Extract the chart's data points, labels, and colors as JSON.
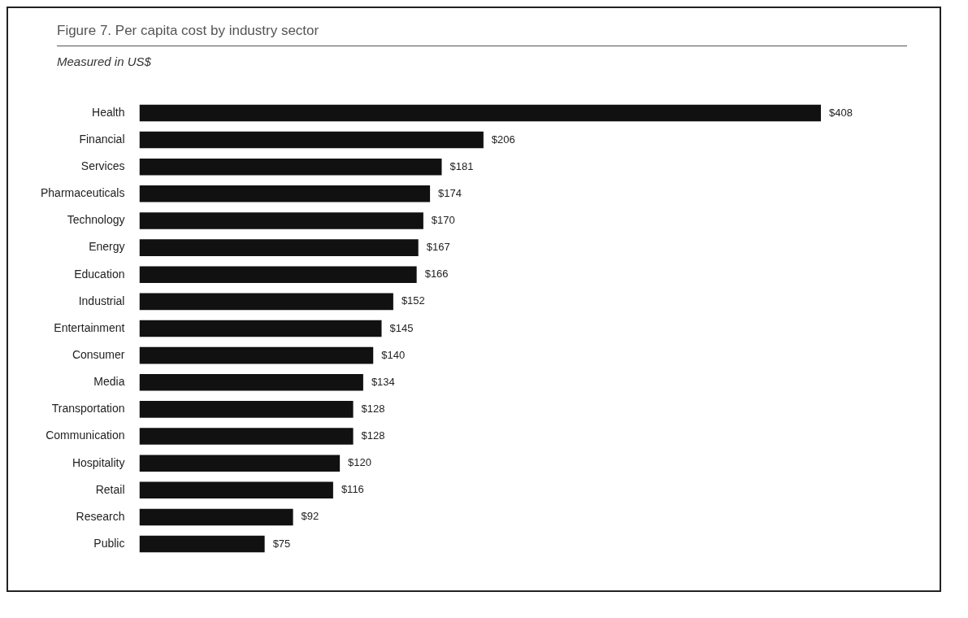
{
  "chart_data": {
    "type": "bar",
    "orientation": "horizontal",
    "title": "Figure 7. Per capita cost by industry sector",
    "subtitle": "Measured in US$",
    "categories": [
      "Health",
      "Financial",
      "Services",
      "Pharmaceuticals",
      "Technology",
      "Energy",
      "Education",
      "Industrial",
      "Entertainment",
      "Consumer",
      "Media",
      "Transportation",
      "Communication",
      "Hospitality",
      "Retail",
      "Research",
      "Public"
    ],
    "values": [
      408,
      206,
      181,
      174,
      170,
      167,
      166,
      152,
      145,
      140,
      134,
      128,
      128,
      120,
      116,
      92,
      75
    ],
    "value_labels": [
      "$408",
      "$206",
      "$181",
      "$174",
      "$170",
      "$167",
      "$166",
      "$152",
      "$145",
      "$140",
      "$134",
      "$128",
      "$128",
      "$120",
      "$116",
      "$92",
      "$75"
    ],
    "color": "#111111",
    "legend": false
  }
}
